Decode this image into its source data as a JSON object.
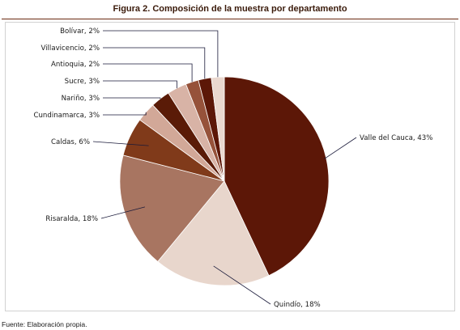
{
  "figure": {
    "title": "Figura 2. Composición de la muestra por departamento",
    "source": "Fuente: Elaboración propia."
  },
  "chart_data": {
    "type": "pie",
    "title": "Figura 2. Composición de la muestra por departamento",
    "unit": "%",
    "slices": [
      {
        "label": "Valle del Cauca, 43%",
        "value": 43,
        "color": "#5c1707"
      },
      {
        "label": "Quindío, 18%",
        "value": 18,
        "color": "#e8d6cc"
      },
      {
        "label": "Risaralda, 18%",
        "value": 18,
        "color": "#a87561"
      },
      {
        "label": "Caldas, 6%",
        "value": 6,
        "color": "#803a1a"
      },
      {
        "label": "Cundinamarca, 3%",
        "value": 3,
        "color": "#d2a898"
      },
      {
        "label": "Nariño, 3%",
        "value": 3,
        "color": "#5a1b07"
      },
      {
        "label": "Sucre, 3%",
        "value": 3,
        "color": "#d8b3a6"
      },
      {
        "label": "Antioquia, 2%",
        "value": 2,
        "color": "#96523a"
      },
      {
        "label": "Villavicencio, 2%",
        "value": 2,
        "color": "#5c1707"
      },
      {
        "label": "Bolívar, 2%",
        "value": 2,
        "color": "#ead8cf"
      }
    ]
  }
}
